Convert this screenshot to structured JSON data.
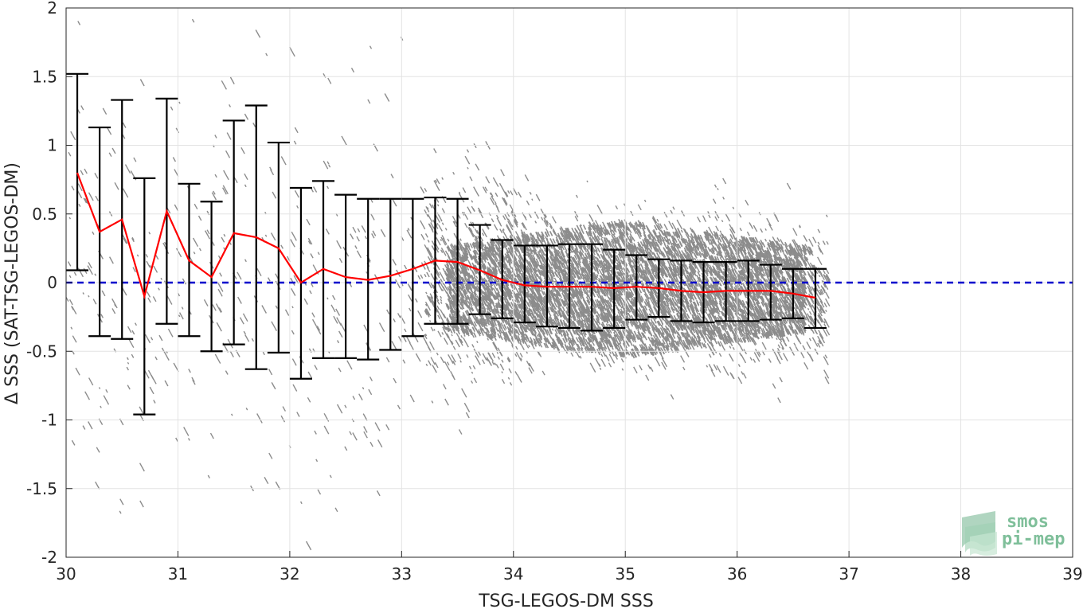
{
  "chart_data": {
    "type": "scatter",
    "title": "",
    "xlabel": "TSG-LEGOS-DM SSS",
    "ylabel": "Δ SSS (SAT-TSG-LEGOS-DM)",
    "xlim": [
      30,
      39
    ],
    "ylim": [
      -2,
      2
    ],
    "xticks": [
      30,
      31,
      32,
      33,
      34,
      35,
      36,
      37,
      38,
      39
    ],
    "xtick_labels": [
      "30",
      "31",
      "32",
      "33",
      "34",
      "35",
      "36",
      "37",
      "38",
      "39"
    ],
    "yticks": [
      -2,
      -1.5,
      -1,
      -0.5,
      0,
      0.5,
      1,
      1.5,
      2
    ],
    "ytick_labels": [
      "-2",
      "-1.5",
      "-1",
      "-0.5",
      "0",
      "0.5",
      "1",
      "1.5",
      "2"
    ],
    "grid": true,
    "reference_line": {
      "y": 0,
      "style": "dashed",
      "color": "#0000cc"
    },
    "scatter_color": "#8c8c8c",
    "series": [
      {
        "type": "line_with_errorbars",
        "color": "#ff0000",
        "errorbar_color": "#000000",
        "x": [
          30.1,
          30.3,
          30.5,
          30.7,
          30.9,
          31.1,
          31.3,
          31.5,
          31.7,
          31.9,
          32.1,
          32.3,
          32.5,
          32.7,
          32.9,
          33.1,
          33.3,
          33.5,
          33.7,
          33.9,
          34.1,
          34.3,
          34.5,
          34.7,
          34.9,
          35.1,
          35.3,
          35.5,
          35.7,
          35.9,
          36.1,
          36.3,
          36.5,
          36.7
        ],
        "mean": [
          0.8,
          0.37,
          0.46,
          -0.1,
          0.52,
          0.16,
          0.04,
          0.36,
          0.33,
          0.25,
          0.0,
          0.1,
          0.04,
          0.02,
          0.05,
          0.1,
          0.16,
          0.15,
          0.09,
          0.02,
          -0.02,
          -0.03,
          -0.03,
          -0.03,
          -0.04,
          -0.03,
          -0.04,
          -0.06,
          -0.07,
          -0.06,
          -0.06,
          -0.06,
          -0.08,
          -0.11
        ],
        "lower": [
          0.09,
          -0.39,
          -0.41,
          -0.96,
          -0.3,
          -0.39,
          -0.5,
          -0.45,
          -0.63,
          -0.51,
          -0.7,
          -0.55,
          -0.55,
          -0.56,
          -0.49,
          -0.39,
          -0.3,
          -0.3,
          -0.23,
          -0.26,
          -0.29,
          -0.32,
          -0.33,
          -0.35,
          -0.33,
          -0.27,
          -0.25,
          -0.28,
          -0.29,
          -0.28,
          -0.28,
          -0.27,
          -0.26,
          -0.33
        ],
        "upper": [
          1.52,
          1.13,
          1.33,
          0.76,
          1.34,
          0.72,
          0.59,
          1.18,
          1.29,
          1.02,
          0.69,
          0.74,
          0.64,
          0.61,
          0.61,
          0.61,
          0.62,
          0.61,
          0.42,
          0.31,
          0.27,
          0.27,
          0.28,
          0.28,
          0.24,
          0.2,
          0.17,
          0.16,
          0.15,
          0.15,
          0.16,
          0.13,
          0.1,
          0.1
        ]
      }
    ]
  },
  "logo": {
    "line1": "smos",
    "line2": "pi-mep"
  }
}
